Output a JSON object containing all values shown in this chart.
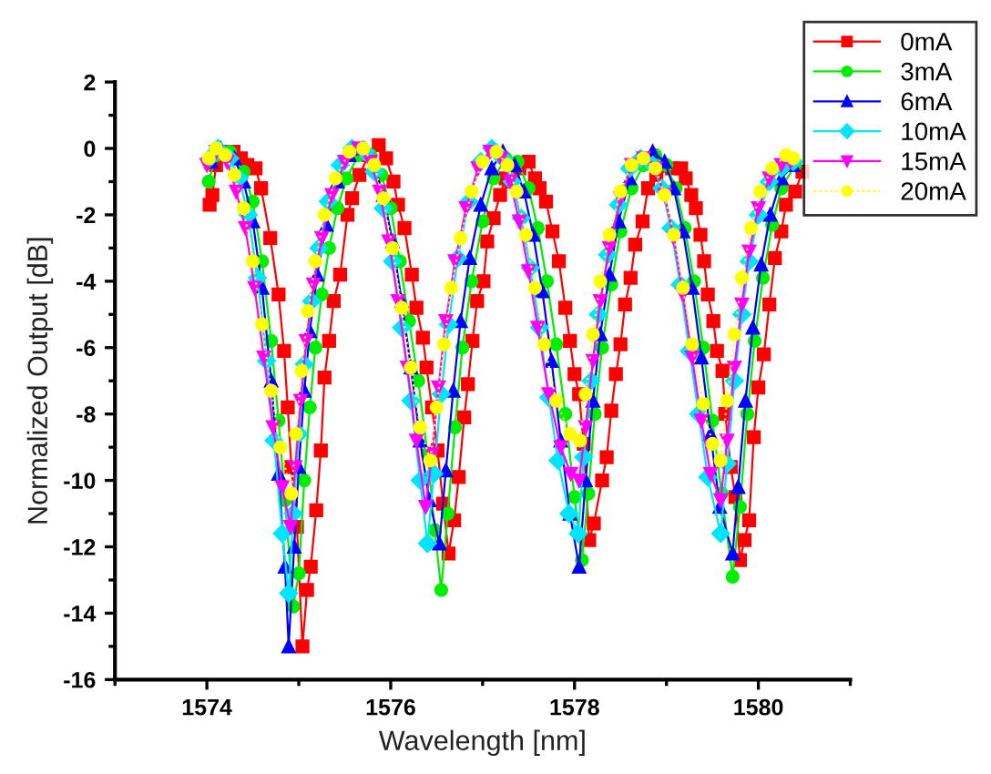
{
  "chart_data": {
    "type": "line",
    "xlabel": "Wavelength [nm]",
    "ylabel": "Normalized Output [dB]",
    "xlim": [
      1573,
      1581
    ],
    "ylim": [
      -16,
      2
    ],
    "xticks": [
      {
        "value": 1573,
        "label": null
      },
      1574,
      {
        "value": 1575,
        "label": null
      },
      1576,
      {
        "value": 1577,
        "label": null
      },
      1578,
      {
        "value": 1579,
        "label": null
      },
      1580,
      {
        "value": 1581,
        "label": null
      }
    ],
    "yticks": [
      -16,
      {
        "value": -15,
        "label": null
      },
      -14,
      {
        "value": -13,
        "label": null
      },
      -12,
      {
        "value": -11,
        "label": null
      },
      -10,
      {
        "value": -9,
        "label": null
      },
      -8,
      {
        "value": -7,
        "label": null
      },
      -6,
      {
        "value": -5,
        "label": null
      },
      -4,
      {
        "value": -3,
        "label": null
      },
      -2,
      {
        "value": -1,
        "label": null
      },
      0,
      {
        "value": 1,
        "label": null
      },
      2
    ],
    "grid": false,
    "legend": "top right",
    "series": [
      {
        "name": "0mA",
        "color": "#ff0000",
        "marker": "square",
        "line_style": "solid",
        "x": [
          1574.03,
          1574.06,
          1574.1,
          1574.2,
          1574.29,
          1574.37,
          1574.44,
          1574.53,
          1574.59,
          1574.69,
          1574.78,
          1574.84,
          1574.88,
          1574.92,
          1574.98,
          1575.04,
          1575.09,
          1575.13,
          1575.19,
          1575.24,
          1575.28,
          1575.33,
          1575.38,
          1575.45,
          1575.53,
          1575.58,
          1575.66,
          1575.76,
          1575.87,
          1575.95,
          1576.03,
          1576.08,
          1576.15,
          1576.23,
          1576.28,
          1576.35,
          1576.39,
          1576.45,
          1576.51,
          1576.57,
          1576.63,
          1576.69,
          1576.74,
          1576.8,
          1576.84,
          1576.89,
          1576.94,
          1577.01,
          1577.05,
          1577.12,
          1577.19,
          1577.25,
          1577.31,
          1577.4,
          1577.5,
          1577.57,
          1577.62,
          1577.69,
          1577.76,
          1577.83,
          1577.9,
          1577.95,
          1578.0,
          1578.05,
          1578.1,
          1578.16,
          1578.21,
          1578.3,
          1578.35,
          1578.4,
          1578.45,
          1578.5,
          1578.55,
          1578.61,
          1578.66,
          1578.74,
          1578.8,
          1578.89,
          1579.06,
          1579.16,
          1579.21,
          1579.27,
          1579.32,
          1579.37,
          1579.41,
          1579.45,
          1579.51,
          1579.55,
          1579.61,
          1579.64,
          1579.7,
          1579.75,
          1579.8,
          1579.85,
          1579.9,
          1579.95,
          1580.0,
          1580.06,
          1580.12,
          1580.18,
          1580.25,
          1580.3,
          1580.4,
          1580.48
        ],
        "values": [
          -1.7,
          -1.4,
          -0.5,
          -0.1,
          -0.1,
          -0.3,
          -0.5,
          -0.6,
          -1.2,
          -2.7,
          -4.4,
          -6.1,
          -7.8,
          -9.6,
          -11.4,
          -15,
          -13.3,
          -12.6,
          -10.9,
          -9.1,
          -6.9,
          -5.8,
          -4.6,
          -3.8,
          -2.0,
          -1.5,
          -0.8,
          -0.2,
          0.1,
          -0.3,
          -1.0,
          -1.7,
          -2.4,
          -3.8,
          -4.8,
          -5.7,
          -6.6,
          -7.8,
          -9.1,
          -10.7,
          -12.2,
          -11.2,
          -9.9,
          -8.1,
          -7.1,
          -5.8,
          -4.6,
          -4.0,
          -2.8,
          -2.1,
          -1.4,
          -0.9,
          -1.0,
          -0.6,
          -0.4,
          -0.9,
          -1.2,
          -1.6,
          -2.5,
          -3.4,
          -4.8,
          -5.8,
          -6.8,
          -7.4,
          -8.9,
          -11.8,
          -11.3,
          -10.0,
          -9.3,
          -7.9,
          -6.8,
          -5.9,
          -4.7,
          -3.9,
          -2.9,
          -2.2,
          -1.2,
          -0.8,
          -0.6,
          -0.6,
          -0.9,
          -1.4,
          -1.8,
          -2.6,
          -3.4,
          -4.4,
          -5.2,
          -6.1,
          -6.7,
          -8.0,
          -9.6,
          -10.5,
          -12.4,
          -11.8,
          -11.2,
          -8.7,
          -7.2,
          -6.2,
          -4.7,
          -3.3,
          -2.5,
          -1.7,
          -1.3,
          -0.7
        ]
      },
      {
        "name": "3mA",
        "color": "#00ee00",
        "marker": "circle",
        "line_style": "solid",
        "x": [
          1574.02,
          1574.1,
          1574.25,
          1574.4,
          1574.5,
          1574.6,
          1574.7,
          1574.78,
          1574.85,
          1574.94,
          1575.0,
          1575.06,
          1575.12,
          1575.18,
          1575.25,
          1575.33,
          1575.42,
          1575.52,
          1575.65,
          1575.78,
          1575.9,
          1576.0,
          1576.1,
          1576.2,
          1576.3,
          1576.4,
          1576.48,
          1576.55,
          1576.62,
          1576.7,
          1576.78,
          1576.88,
          1577.0,
          1577.12,
          1577.25,
          1577.38,
          1577.5,
          1577.6,
          1577.7,
          1577.8,
          1577.9,
          1578.0,
          1578.08,
          1578.15,
          1578.22,
          1578.3,
          1578.4,
          1578.5,
          1578.62,
          1578.75,
          1578.88,
          1579.0,
          1579.1,
          1579.2,
          1579.3,
          1579.4,
          1579.5,
          1579.6,
          1579.72,
          1579.8,
          1579.88,
          1579.96,
          1580.05,
          1580.15,
          1580.25,
          1580.4
        ],
        "values": [
          -1.0,
          -0.2,
          -0.1,
          -0.7,
          -1.6,
          -3.4,
          -5.8,
          -8.2,
          -10.6,
          -13.8,
          -12.8,
          -10.0,
          -7.8,
          -6.0,
          -4.4,
          -3.0,
          -1.8,
          -0.9,
          -0.2,
          -0.2,
          -0.8,
          -1.8,
          -3.4,
          -5.2,
          -7.0,
          -9.2,
          -11.5,
          -13.3,
          -11.0,
          -8.4,
          -6.0,
          -4.0,
          -2.2,
          -0.9,
          -0.3,
          -0.4,
          -1.2,
          -2.4,
          -4.0,
          -5.9,
          -8.0,
          -10.5,
          -12.4,
          -10.4,
          -8.0,
          -6.0,
          -4.1,
          -2.5,
          -1.2,
          -0.5,
          -0.2,
          -0.5,
          -1.2,
          -2.4,
          -4.0,
          -6.0,
          -8.2,
          -10.4,
          -12.9,
          -10.8,
          -8.0,
          -5.8,
          -3.9,
          -2.3,
          -1.2,
          -0.5
        ]
      },
      {
        "name": "6mA",
        "color": "#0000ff",
        "marker": "triangle",
        "line_style": "solid",
        "x": [
          1574.05,
          1574.15,
          1574.3,
          1574.4,
          1574.5,
          1574.6,
          1574.7,
          1574.78,
          1574.85,
          1574.89,
          1574.95,
          1575.0,
          1575.06,
          1575.12,
          1575.2,
          1575.3,
          1575.42,
          1575.55,
          1575.7,
          1575.82,
          1575.92,
          1576.02,
          1576.12,
          1576.22,
          1576.32,
          1576.42,
          1576.53,
          1576.6,
          1576.68,
          1576.76,
          1576.86,
          1576.98,
          1577.1,
          1577.22,
          1577.35,
          1577.45,
          1577.55,
          1577.65,
          1577.75,
          1577.85,
          1577.95,
          1578.05,
          1578.12,
          1578.2,
          1578.28,
          1578.38,
          1578.48,
          1578.6,
          1578.72,
          1578.85,
          1578.98,
          1579.08,
          1579.18,
          1579.28,
          1579.38,
          1579.48,
          1579.58,
          1579.72,
          1579.78,
          1579.86,
          1579.94,
          1580.03,
          1580.13,
          1580.25,
          1580.38
        ],
        "values": [
          -0.4,
          0,
          -0.3,
          -1.0,
          -2.2,
          -4.2,
          -7.0,
          -9.8,
          -12.6,
          -15,
          -12.0,
          -9.6,
          -7.3,
          -5.5,
          -3.8,
          -2.3,
          -1.0,
          -0.2,
          0,
          -0.5,
          -1.4,
          -2.8,
          -4.6,
          -6.6,
          -8.8,
          -10.6,
          -11.9,
          -9.7,
          -7.3,
          -5.2,
          -3.3,
          -1.7,
          -0.6,
          -0.1,
          -0.5,
          -1.3,
          -2.6,
          -4.3,
          -6.4,
          -8.8,
          -11.0,
          -12.6,
          -10.0,
          -7.6,
          -5.6,
          -3.8,
          -2.2,
          -0.9,
          -0.3,
          -0.1,
          -0.4,
          -1.2,
          -2.5,
          -4.2,
          -6.3,
          -8.6,
          -10.8,
          -12.2,
          -10.2,
          -7.6,
          -5.4,
          -3.5,
          -2.0,
          -0.9,
          -0.5
        ]
      },
      {
        "name": "10mA",
        "color": "#00e5ff",
        "marker": "diamond",
        "line_style": "solid",
        "x": [
          1574.03,
          1574.12,
          1574.25,
          1574.35,
          1574.45,
          1574.55,
          1574.65,
          1574.73,
          1574.82,
          1574.89,
          1574.94,
          1575.0,
          1575.06,
          1575.14,
          1575.22,
          1575.32,
          1575.45,
          1575.58,
          1575.72,
          1575.82,
          1575.92,
          1576.02,
          1576.12,
          1576.22,
          1576.32,
          1576.4,
          1576.47,
          1576.55,
          1576.63,
          1576.73,
          1576.85,
          1576.98,
          1577.1,
          1577.22,
          1577.32,
          1577.42,
          1577.52,
          1577.62,
          1577.72,
          1577.82,
          1577.94,
          1578.04,
          1578.1,
          1578.18,
          1578.26,
          1578.36,
          1578.48,
          1578.6,
          1578.72,
          1578.85,
          1578.95,
          1579.05,
          1579.15,
          1579.25,
          1579.35,
          1579.45,
          1579.59,
          1579.66,
          1579.74,
          1579.82,
          1579.9,
          1580.0,
          1580.12,
          1580.25,
          1580.38
        ],
        "values": [
          -0.3,
          0,
          -0.3,
          -0.9,
          -2.0,
          -3.9,
          -6.4,
          -8.8,
          -11.6,
          -13.4,
          -11.0,
          -8.6,
          -6.5,
          -4.6,
          -3.0,
          -1.6,
          -0.5,
          0,
          -0.1,
          -0.7,
          -1.8,
          -3.4,
          -5.4,
          -7.6,
          -10.0,
          -11.9,
          -9.8,
          -7.4,
          -5.3,
          -3.3,
          -1.6,
          -0.4,
          0,
          -0.3,
          -1.0,
          -2.1,
          -3.6,
          -5.4,
          -7.5,
          -9.4,
          -11.0,
          -11.6,
          -9.3,
          -7.0,
          -5.0,
          -3.2,
          -1.7,
          -0.6,
          -0.3,
          -0.5,
          -1.2,
          -2.4,
          -4.1,
          -6.1,
          -8.0,
          -9.9,
          -11.6,
          -9.5,
          -7.0,
          -5.0,
          -3.4,
          -2.0,
          -1.0,
          -0.6,
          -0.4
        ]
      },
      {
        "name": "15mA",
        "color": "#ff00ff",
        "marker": "triangle_down",
        "line_style": "solid",
        "x": [
          1574.0,
          1574.1,
          1574.22,
          1574.32,
          1574.42,
          1574.52,
          1574.62,
          1574.72,
          1574.82,
          1574.91,
          1574.96,
          1575.02,
          1575.08,
          1575.16,
          1575.25,
          1575.36,
          1575.5,
          1575.65,
          1575.78,
          1575.88,
          1575.98,
          1576.08,
          1576.18,
          1576.28,
          1576.38,
          1576.45,
          1576.52,
          1576.6,
          1576.7,
          1576.82,
          1576.95,
          1577.08,
          1577.2,
          1577.3,
          1577.4,
          1577.5,
          1577.6,
          1577.72,
          1577.85,
          1577.96,
          1578.05,
          1578.12,
          1578.2,
          1578.28,
          1578.38,
          1578.5,
          1578.62,
          1578.75,
          1578.88,
          1578.98,
          1579.08,
          1579.18,
          1579.28,
          1579.38,
          1579.48,
          1579.59,
          1579.66,
          1579.74,
          1579.82,
          1579.9,
          1580.0,
          1580.12,
          1580.25,
          1580.35
        ],
        "values": [
          -0.5,
          -0.1,
          -0.4,
          -1.3,
          -2.4,
          -4.2,
          -6.3,
          -8.4,
          -10.2,
          -11.4,
          -9.6,
          -7.6,
          -5.8,
          -4.1,
          -2.7,
          -1.4,
          -0.4,
          0,
          -0.4,
          -1.3,
          -2.8,
          -4.6,
          -6.6,
          -8.8,
          -10.8,
          -9.2,
          -7.2,
          -5.2,
          -3.4,
          -1.8,
          -0.6,
          -0.1,
          -0.3,
          -1.0,
          -2.2,
          -3.7,
          -5.4,
          -7.4,
          -9.0,
          -9.8,
          -10.0,
          -8.4,
          -6.4,
          -4.6,
          -3.0,
          -1.5,
          -0.5,
          -0.3,
          -0.6,
          -1.4,
          -2.7,
          -4.4,
          -6.3,
          -8.2,
          -9.8,
          -10.6,
          -8.8,
          -6.6,
          -4.7,
          -3.1,
          -1.8,
          -0.9,
          -0.5,
          -0.4
        ]
      },
      {
        "name": "20mA",
        "color": "#ffff00",
        "marker": "circle",
        "line_style": "dotted",
        "x": [
          1574.02,
          1574.1,
          1574.2,
          1574.3,
          1574.4,
          1574.5,
          1574.6,
          1574.7,
          1574.8,
          1574.92,
          1574.97,
          1575.03,
          1575.1,
          1575.18,
          1575.28,
          1575.4,
          1575.55,
          1575.7,
          1575.82,
          1575.92,
          1576.02,
          1576.12,
          1576.22,
          1576.32,
          1576.43,
          1576.5,
          1576.58,
          1576.66,
          1576.76,
          1576.88,
          1577.0,
          1577.15,
          1577.27,
          1577.37,
          1577.47,
          1577.57,
          1577.67,
          1577.8,
          1577.95,
          1578.06,
          1578.12,
          1578.2,
          1578.28,
          1578.38,
          1578.5,
          1578.62,
          1578.75,
          1578.88,
          1578.98,
          1579.08,
          1579.18,
          1579.28,
          1579.4,
          1579.5,
          1579.59,
          1579.66,
          1579.74,
          1579.82,
          1579.92,
          1580.02,
          1580.15,
          1580.3,
          1580.38
        ],
        "values": [
          -0.3,
          0,
          -0.2,
          -0.8,
          -1.8,
          -3.4,
          -5.3,
          -7.3,
          -9.0,
          -10.4,
          -8.6,
          -6.7,
          -4.9,
          -3.4,
          -2.0,
          -0.9,
          -0.1,
          0,
          -0.5,
          -1.5,
          -3.0,
          -4.8,
          -6.6,
          -8.4,
          -9.4,
          -7.8,
          -5.9,
          -4.2,
          -2.7,
          -1.3,
          -0.4,
          -0.1,
          -0.5,
          -1.3,
          -2.6,
          -4.2,
          -5.9,
          -7.6,
          -8.6,
          -8.8,
          -7.4,
          -5.6,
          -4.0,
          -2.6,
          -1.3,
          -0.5,
          -0.3,
          -0.6,
          -1.4,
          -2.6,
          -4.2,
          -5.9,
          -7.7,
          -8.9,
          -9.4,
          -7.6,
          -5.6,
          -3.9,
          -2.4,
          -1.3,
          -0.6,
          -0.2,
          -0.3
        ]
      }
    ]
  }
}
